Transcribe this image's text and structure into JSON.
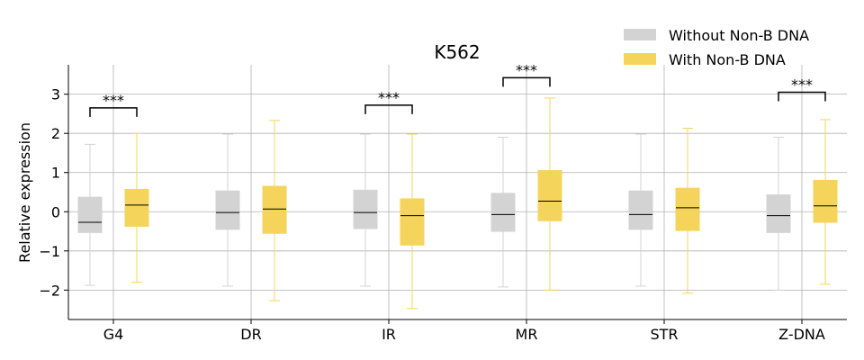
{
  "chart_data": {
    "type": "box",
    "title": "K562",
    "xlabel": "",
    "ylabel": "Relative expression",
    "ylim": [
      -2.75,
      3.75
    ],
    "yticks": [
      -2,
      -1,
      0,
      1,
      2,
      3
    ],
    "ytick_labels": [
      "−2",
      "−1",
      "0",
      "1",
      "2",
      "3"
    ],
    "grid": true,
    "legend_position": "top-right",
    "categories": [
      "G4",
      "DR",
      "IR",
      "MR",
      "STR",
      "Z-DNA"
    ],
    "series": [
      {
        "name": "Without Non-B DNA",
        "color": "#d3d3d3",
        "boxes": [
          {
            "whislo": -1.88,
            "q1": -0.53,
            "med": -0.27,
            "q3": 0.37,
            "whishi": 1.72
          },
          {
            "whislo": -1.9,
            "q1": -0.45,
            "med": -0.02,
            "q3": 0.53,
            "whishi": 1.98
          },
          {
            "whislo": -1.9,
            "q1": -0.43,
            "med": -0.02,
            "q3": 0.55,
            "whishi": 1.98
          },
          {
            "whislo": -1.92,
            "q1": -0.5,
            "med": -0.07,
            "q3": 0.47,
            "whishi": 1.9
          },
          {
            "whislo": -1.9,
            "q1": -0.45,
            "med": -0.07,
            "q3": 0.53,
            "whishi": 1.98
          },
          {
            "whislo": -2.0,
            "q1": -0.53,
            "med": -0.1,
            "q3": 0.43,
            "whishi": 1.9
          }
        ]
      },
      {
        "name": "With Non-B DNA",
        "color": "#f5d45c",
        "boxes": [
          {
            "whislo": -1.8,
            "q1": -0.37,
            "med": 0.17,
            "q3": 0.57,
            "whishi": 2.0
          },
          {
            "whislo": -2.27,
            "q1": -0.55,
            "med": 0.07,
            "q3": 0.65,
            "whishi": 2.33
          },
          {
            "whislo": -2.47,
            "q1": -0.85,
            "med": -0.1,
            "q3": 0.33,
            "whishi": 1.98
          },
          {
            "whislo": -2.0,
            "q1": -0.23,
            "med": 0.27,
            "q3": 1.05,
            "whishi": 2.9
          },
          {
            "whislo": -2.08,
            "q1": -0.48,
            "med": 0.1,
            "q3": 0.6,
            "whishi": 2.13
          },
          {
            "whislo": -1.85,
            "q1": -0.27,
            "med": 0.15,
            "q3": 0.8,
            "whishi": 2.35
          }
        ]
      }
    ],
    "annotations": [
      {
        "category": "G4",
        "text": "***",
        "y": 2.65
      },
      {
        "category": "IR",
        "text": "***",
        "y": 2.72
      },
      {
        "category": "MR",
        "text": "***",
        "y": 3.42
      },
      {
        "category": "Z-DNA",
        "text": "***",
        "y": 3.05
      }
    ]
  }
}
